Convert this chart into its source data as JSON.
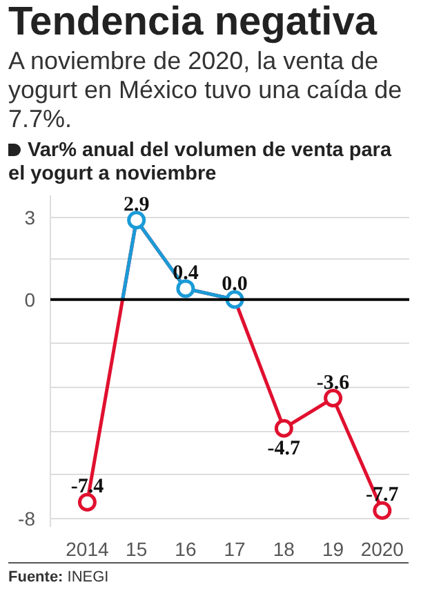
{
  "chart_data": {
    "type": "line",
    "title": "Tendencia negativa",
    "subtitle": "A noviembre de 2020, la venta de yogurt en México tuvo una caída de 7.7%.",
    "ylabel": "Var% anual del volumen de venta para el yogurt a noviembre",
    "categories": [
      "2014",
      "15",
      "16",
      "17",
      "18",
      "19",
      "2020"
    ],
    "values": [
      -7.4,
      2.9,
      0.4,
      0.0,
      -4.7,
      -3.6,
      -7.7
    ],
    "colors": [
      "#e0102f",
      "#1a9bd7",
      "#1a9bd7",
      "#1a9bd7",
      "#e0102f",
      "#e0102f",
      "#e0102f"
    ],
    "ylim": [
      -8.3,
      3.8
    ],
    "yticks": [
      3,
      {
        "value": 1.5,
        "label": null
      },
      0,
      {
        "value": -1.6,
        "label": null
      },
      {
        "value": -3.2,
        "label": null
      },
      {
        "value": -4.8,
        "label": null
      },
      {
        "value": -6.4,
        "label": null
      },
      -8
    ],
    "value_labels": [
      "-7.4",
      "2.9",
      "0.4",
      "0.0",
      "-4.7",
      "-3.6",
      "-7.7"
    ],
    "grid": "y",
    "marker": "circle",
    "ref_lines": [
      {
        "axis": "y",
        "value": 0,
        "label": null,
        "color": "#000000"
      }
    ],
    "annotations": [
      "Fuente: INEGI"
    ]
  }
}
